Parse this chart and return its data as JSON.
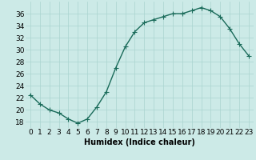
{
  "x": [
    0,
    1,
    2,
    3,
    4,
    5,
    6,
    7,
    8,
    9,
    10,
    11,
    12,
    13,
    14,
    15,
    16,
    17,
    18,
    19,
    20,
    21,
    22,
    23
  ],
  "y": [
    22.5,
    21.0,
    20.0,
    19.5,
    18.5,
    17.8,
    18.5,
    20.5,
    23.0,
    27.0,
    30.5,
    33.0,
    34.5,
    35.0,
    35.5,
    36.0,
    36.0,
    36.5,
    37.0,
    36.5,
    35.5,
    33.5,
    31.0,
    29.0
  ],
  "line_color": "#1a6b5a",
  "marker": "+",
  "markersize": 4,
  "linewidth": 1.0,
  "markeredgewidth": 0.8,
  "xlabel": "Humidex (Indice chaleur)",
  "bg_color": "#cceae7",
  "grid_color": "#aad4cf",
  "ylim": [
    17,
    38
  ],
  "xlim": [
    -0.5,
    23.5
  ],
  "yticks": [
    18,
    20,
    22,
    24,
    26,
    28,
    30,
    32,
    34,
    36
  ],
  "xticks": [
    0,
    1,
    2,
    3,
    4,
    5,
    6,
    7,
    8,
    9,
    10,
    11,
    12,
    13,
    14,
    15,
    16,
    17,
    18,
    19,
    20,
    21,
    22,
    23
  ],
  "xtick_labels": [
    "0",
    "1",
    "2",
    "3",
    "4",
    "5",
    "6",
    "7",
    "8",
    "9",
    "10",
    "11",
    "12",
    "13",
    "14",
    "15",
    "16",
    "17",
    "18",
    "19",
    "20",
    "21",
    "22",
    "23"
  ],
  "xlabel_fontsize": 7,
  "tick_fontsize": 6.5
}
